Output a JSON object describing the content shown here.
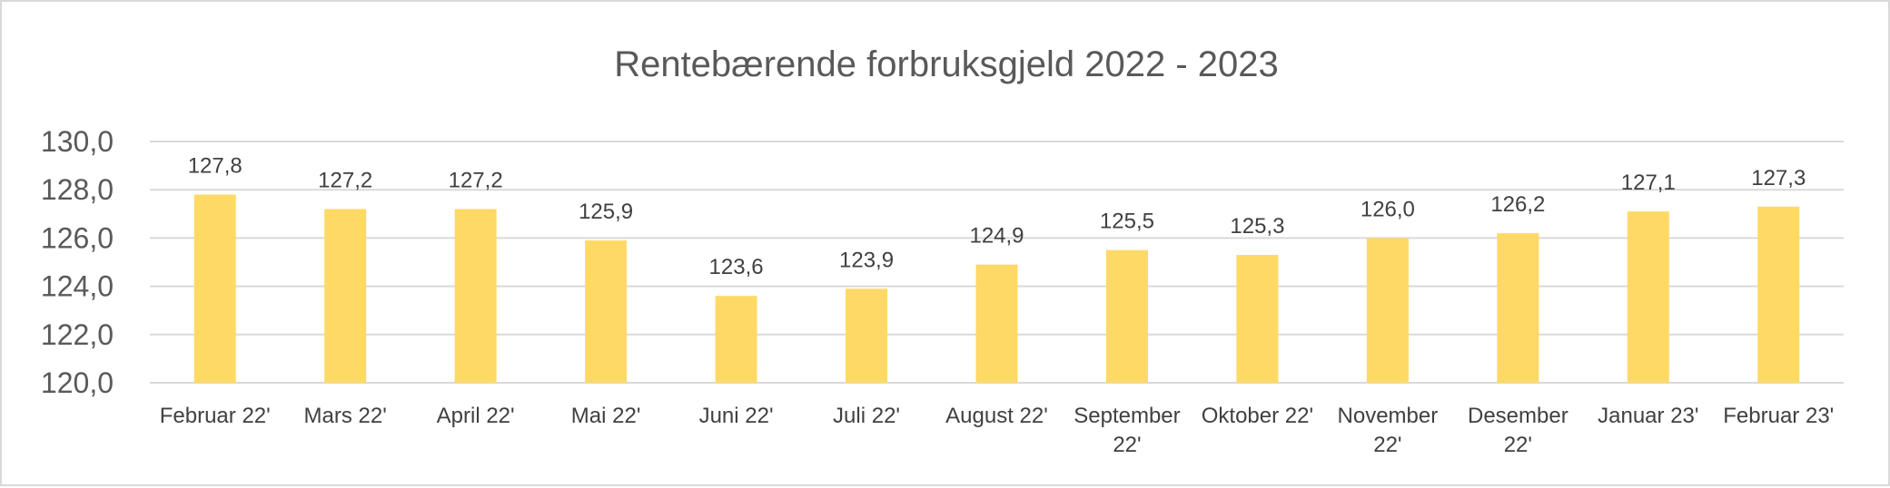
{
  "chart_data": {
    "type": "bar",
    "title": "Rentebærende forbruksgjeld 2022 - 2023",
    "xlabel": "",
    "ylabel": "",
    "ylim": [
      120,
      130
    ],
    "ytick_values": [
      120,
      122,
      124,
      126,
      128,
      130
    ],
    "ytick_labels": [
      "120,0",
      "122,0",
      "124,0",
      "126,0",
      "128,0",
      "130,0"
    ],
    "grid": true,
    "legend": "none",
    "bar_color": "#ffd966",
    "categories": [
      [
        "Februar 22'"
      ],
      [
        "Mars 22'"
      ],
      [
        "April 22'"
      ],
      [
        "Mai 22'"
      ],
      [
        "Juni 22'"
      ],
      [
        "Juli 22'"
      ],
      [
        "August 22'"
      ],
      [
        "September",
        "22'"
      ],
      [
        "Oktober 22'"
      ],
      [
        "November",
        "22'"
      ],
      [
        "Desember",
        "22'"
      ],
      [
        "Januar 23'"
      ],
      [
        "Februar 23'"
      ]
    ],
    "values": [
      127.8,
      127.2,
      127.2,
      125.9,
      123.6,
      123.9,
      124.9,
      125.5,
      125.3,
      126.0,
      126.2,
      127.1,
      127.3
    ],
    "value_labels": [
      "127,8",
      "127,2",
      "127,2",
      "125,9",
      "123,6",
      "123,9",
      "124,9",
      "125,5",
      "125,3",
      "126,0",
      "126,2",
      "127,1",
      "127,3"
    ]
  }
}
